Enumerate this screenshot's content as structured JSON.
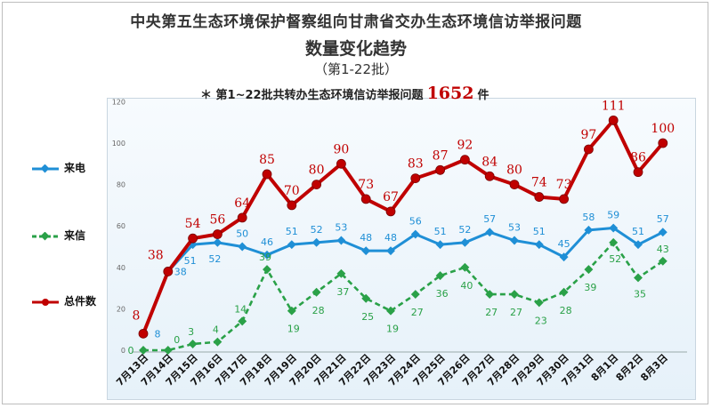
{
  "titles": {
    "line1": "中央第五生态环境保护督察组向甘肃省交办生态环境信访举报问题",
    "line2": "数量变化趋势",
    "line3": "（第1-22批）"
  },
  "note": {
    "prefix": "＊ 第1~22批共转办生态环境信访举报问题",
    "total": "1652",
    "suffix": "件"
  },
  "chart_data": {
    "type": "line",
    "categories": [
      "7月13日",
      "7月14日",
      "7月15日",
      "7月16日",
      "7月17日",
      "7月18日",
      "7月19日",
      "7月20日",
      "7月21日",
      "7月22日",
      "7月23日",
      "7月24日",
      "7月25日",
      "7月26日",
      "7月27日",
      "7月28日",
      "7月29日",
      "7月30日",
      "7月31日",
      "8月1日",
      "8月2日",
      "8月3日"
    ],
    "ylim": [
      0,
      120
    ],
    "yticks": [
      0,
      20,
      40,
      60,
      80,
      100,
      120
    ],
    "grid": false,
    "legend": "left",
    "series": [
      {
        "name": "来电",
        "color": "#1f8fd6",
        "dash": false,
        "values": [
          8,
          38,
          51,
          52,
          50,
          46,
          51,
          52,
          53,
          48,
          48,
          56,
          51,
          52,
          57,
          53,
          51,
          45,
          58,
          59,
          51,
          57
        ]
      },
      {
        "name": "来信",
        "color": "#2aa148",
        "dash": true,
        "values": [
          0,
          0,
          3,
          4,
          14,
          39,
          19,
          28,
          37,
          25,
          19,
          27,
          36,
          40,
          27,
          27,
          23,
          28,
          39,
          52,
          35,
          43
        ]
      },
      {
        "name": "总件数",
        "color": "#c00000",
        "dash": false,
        "values": [
          8,
          38,
          54,
          56,
          64,
          85,
          70,
          80,
          90,
          73,
          67,
          83,
          87,
          92,
          84,
          80,
          74,
          73,
          97,
          111,
          86,
          100
        ]
      }
    ]
  }
}
